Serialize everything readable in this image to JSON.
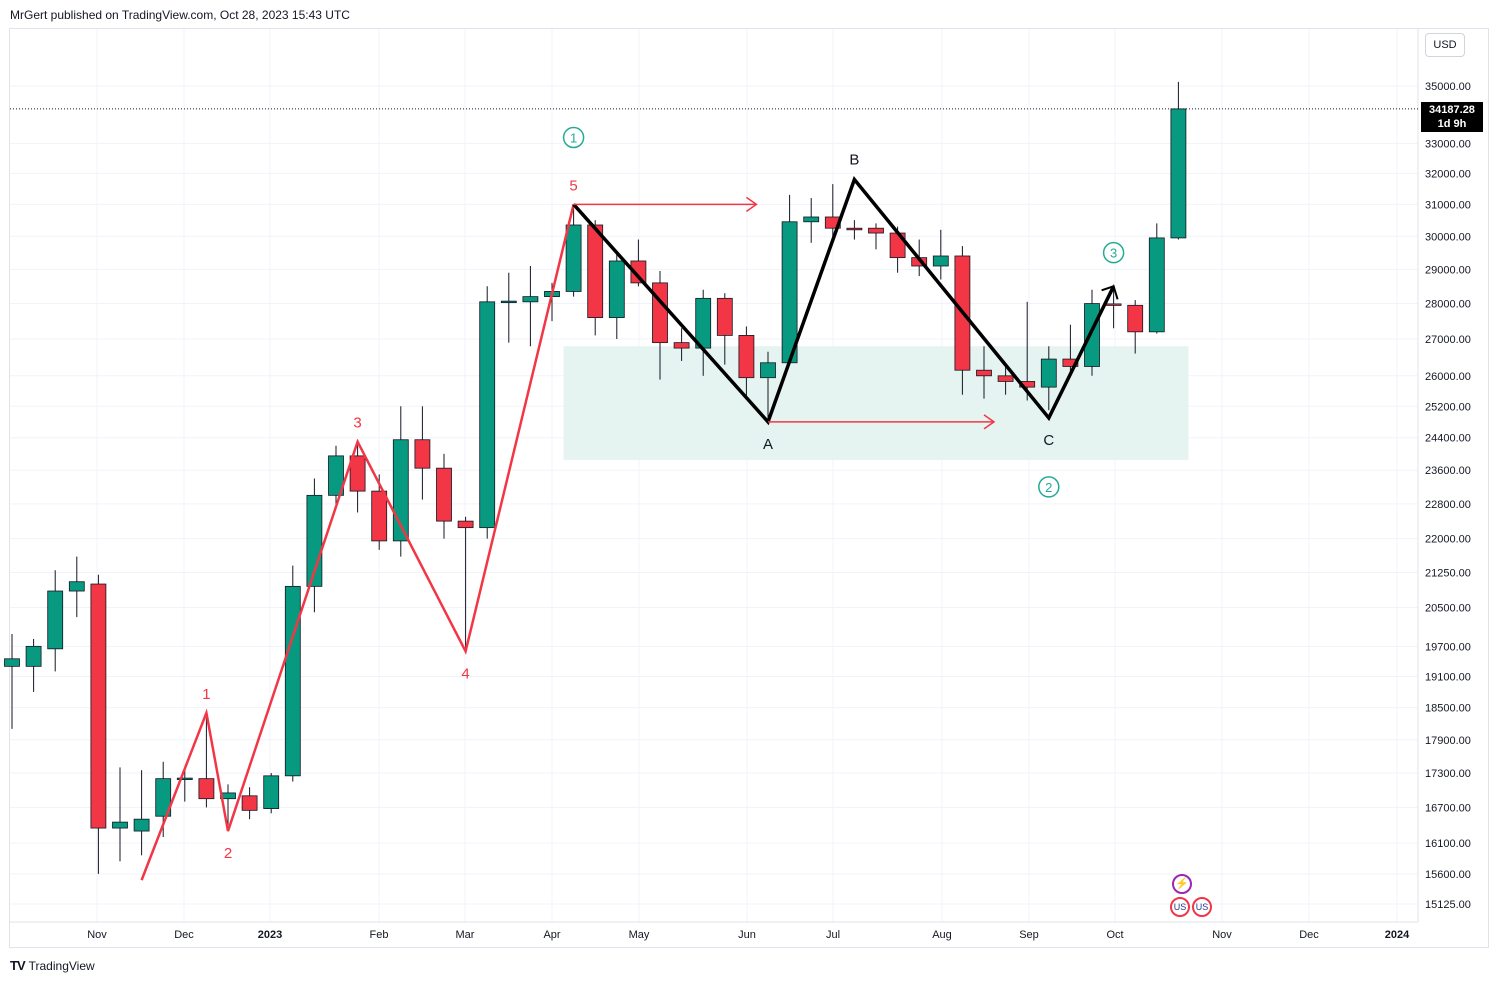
{
  "header": {
    "publisher": "MrGert published on TradingView.com, Oct 28, 2023 15:43 UTC"
  },
  "footer": {
    "brand": "TradingView"
  },
  "toolbar": {
    "currency": "USD"
  },
  "last_price": {
    "value": "34187.28",
    "countdown": "1d 9h"
  },
  "colors": {
    "up": "#089981",
    "down": "#f23645",
    "zone": "#e6f4f1",
    "wave": "#f23645",
    "abc": "#000000",
    "circle": "#22ab94"
  },
  "icons": [
    "lightning-icon",
    "us-flag-icon",
    "us-flag-icon"
  ],
  "chart_data": {
    "type": "candlestick",
    "timeframe": "weekly",
    "y_scale": "log",
    "y_ticks": [
      "35000.00",
      "33000.00",
      "32000.00",
      "31000.00",
      "30000.00",
      "29000.00",
      "28000.00",
      "27000.00",
      "26000.00",
      "25200.00",
      "24400.00",
      "23600.00",
      "22800.00",
      "22000.00",
      "21250.00",
      "20500.00",
      "19700.00",
      "19100.00",
      "18500.00",
      "17900.00",
      "17300.00",
      "16700.00",
      "16100.00",
      "15600.00",
      "15125.00"
    ],
    "x_ticks": [
      "Nov",
      "Dec",
      "2023",
      "Feb",
      "Mar",
      "Apr",
      "May",
      "Jun",
      "Jul",
      "Aug",
      "Sep",
      "Oct",
      "Nov",
      "Dec",
      "2024"
    ],
    "candles": [
      {
        "o": 19300,
        "h": 19950,
        "l": 18100,
        "c": 19450
      },
      {
        "o": 19300,
        "h": 19850,
        "l": 18800,
        "c": 19700
      },
      {
        "o": 19650,
        "h": 21300,
        "l": 19200,
        "c": 20850
      },
      {
        "o": 20850,
        "h": 21600,
        "l": 20300,
        "c": 21050
      },
      {
        "o": 21000,
        "h": 21200,
        "l": 15600,
        "c": 16350
      },
      {
        "o": 16350,
        "h": 17400,
        "l": 15800,
        "c": 16450
      },
      {
        "o": 16300,
        "h": 17350,
        "l": 15900,
        "c": 16500
      },
      {
        "o": 16550,
        "h": 17500,
        "l": 16200,
        "c": 17200
      },
      {
        "o": 17190,
        "h": 17400,
        "l": 16800,
        "c": 17210
      },
      {
        "o": 17200,
        "h": 18400,
        "l": 16700,
        "c": 16850
      },
      {
        "o": 16850,
        "h": 17100,
        "l": 16400,
        "c": 16950
      },
      {
        "o": 16900,
        "h": 17050,
        "l": 16500,
        "c": 16650
      },
      {
        "o": 16680,
        "h": 17300,
        "l": 16600,
        "c": 17250
      },
      {
        "o": 17250,
        "h": 21400,
        "l": 17150,
        "c": 20950
      },
      {
        "o": 20950,
        "h": 23400,
        "l": 20400,
        "c": 23000
      },
      {
        "o": 23000,
        "h": 24200,
        "l": 22700,
        "c": 23950
      },
      {
        "o": 23950,
        "h": 24300,
        "l": 22600,
        "c": 23100
      },
      {
        "o": 23100,
        "h": 23500,
        "l": 21750,
        "c": 21950
      },
      {
        "o": 21950,
        "h": 25200,
        "l": 21600,
        "c": 24350
      },
      {
        "o": 24350,
        "h": 25200,
        "l": 22900,
        "c": 23650
      },
      {
        "o": 23650,
        "h": 24000,
        "l": 22000,
        "c": 22400
      },
      {
        "o": 22400,
        "h": 22500,
        "l": 19600,
        "c": 22250
      },
      {
        "o": 22250,
        "h": 28500,
        "l": 22000,
        "c": 28050
      },
      {
        "o": 28040,
        "h": 28900,
        "l": 26900,
        "c": 28070
      },
      {
        "o": 28050,
        "h": 29100,
        "l": 26800,
        "c": 28200
      },
      {
        "o": 28200,
        "h": 28600,
        "l": 27500,
        "c": 28350
      },
      {
        "o": 28350,
        "h": 30900,
        "l": 28200,
        "c": 30350
      },
      {
        "o": 30350,
        "h": 30500,
        "l": 27100,
        "c": 27600
      },
      {
        "o": 27600,
        "h": 29500,
        "l": 27000,
        "c": 29250
      },
      {
        "o": 29250,
        "h": 29900,
        "l": 28500,
        "c": 28600
      },
      {
        "o": 28600,
        "h": 28950,
        "l": 25900,
        "c": 26900
      },
      {
        "o": 26900,
        "h": 27300,
        "l": 26400,
        "c": 26750
      },
      {
        "o": 26750,
        "h": 28400,
        "l": 26000,
        "c": 28150
      },
      {
        "o": 28150,
        "h": 28300,
        "l": 26300,
        "c": 27100
      },
      {
        "o": 27100,
        "h": 27350,
        "l": 25450,
        "c": 25950
      },
      {
        "o": 25950,
        "h": 26650,
        "l": 24900,
        "c": 26350
      },
      {
        "o": 26350,
        "h": 31300,
        "l": 26300,
        "c": 30450
      },
      {
        "o": 30450,
        "h": 31200,
        "l": 29800,
        "c": 30600
      },
      {
        "o": 30600,
        "h": 31650,
        "l": 29900,
        "c": 30250
      },
      {
        "o": 30250,
        "h": 30500,
        "l": 29900,
        "c": 30200
      },
      {
        "o": 30250,
        "h": 30400,
        "l": 29600,
        "c": 30100
      },
      {
        "o": 30100,
        "h": 30300,
        "l": 28900,
        "c": 29350
      },
      {
        "o": 29350,
        "h": 29900,
        "l": 28800,
        "c": 29100
      },
      {
        "o": 29100,
        "h": 30200,
        "l": 28700,
        "c": 29400
      },
      {
        "o": 29400,
        "h": 29700,
        "l": 25500,
        "c": 26150
      },
      {
        "o": 26150,
        "h": 26800,
        "l": 25400,
        "c": 26000
      },
      {
        "o": 26000,
        "h": 26250,
        "l": 25500,
        "c": 25850
      },
      {
        "o": 25850,
        "h": 28050,
        "l": 25350,
        "c": 25700
      },
      {
        "o": 25700,
        "h": 26800,
        "l": 25100,
        "c": 26450
      },
      {
        "o": 26450,
        "h": 27400,
        "l": 26100,
        "c": 26250
      },
      {
        "o": 26250,
        "h": 28400,
        "l": 26000,
        "c": 28000
      },
      {
        "o": 27990,
        "h": 28550,
        "l": 27300,
        "c": 27950
      },
      {
        "o": 27950,
        "h": 28100,
        "l": 26600,
        "c": 27200
      },
      {
        "o": 27200,
        "h": 30400,
        "l": 27150,
        "c": 29950
      },
      {
        "o": 29950,
        "h": 35150,
        "l": 29900,
        "c": 34187
      }
    ],
    "zone": {
      "from_index": 26,
      "to_index": 54,
      "high": 26800,
      "low": 23850
    },
    "impulse_wave": [
      {
        "label": "",
        "index": 6,
        "price": 15500
      },
      {
        "label": "1",
        "index": 9,
        "price": 18400
      },
      {
        "label": "2",
        "index": 10,
        "price": 16300
      },
      {
        "label": "3",
        "index": 16,
        "price": 24300
      },
      {
        "label": "4",
        "index": 21,
        "price": 19600
      },
      {
        "label": "5",
        "index": 26,
        "price": 31000
      }
    ],
    "correction_wave": [
      {
        "label": "",
        "index": 26,
        "price": 31000
      },
      {
        "label": "A",
        "index": 35,
        "price": 24800
      },
      {
        "label": "B",
        "index": 39,
        "price": 31800
      },
      {
        "label": "C",
        "index": 48,
        "price": 24900
      },
      {
        "label": "",
        "index": 51,
        "price": 28500
      }
    ],
    "arrows": [
      {
        "from_index": 26,
        "to_index": 34,
        "price": 31000
      },
      {
        "from_index": 35,
        "to_index": 45,
        "price": 24800
      }
    ],
    "circle_labels": [
      {
        "label": "1",
        "index": 26,
        "price": 33200
      },
      {
        "label": "2",
        "index": 48,
        "price": 23200
      },
      {
        "label": "3",
        "index": 51,
        "price": 29500
      }
    ]
  }
}
